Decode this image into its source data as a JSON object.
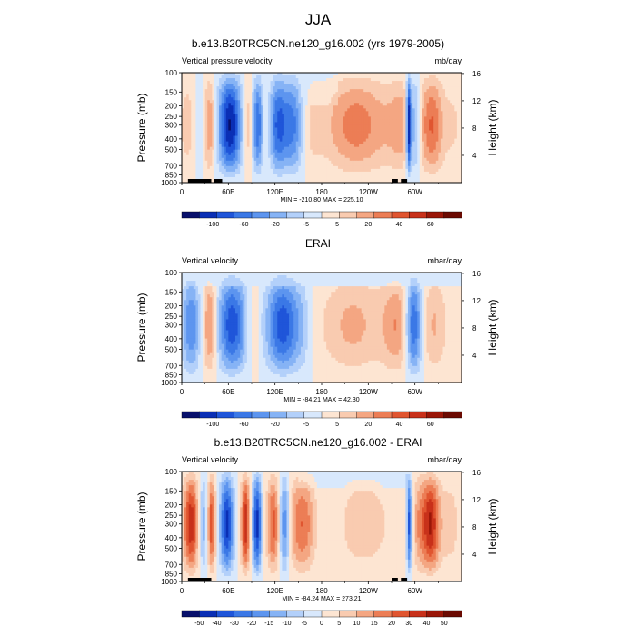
{
  "title": "JJA",
  "chart_data": [
    {
      "type": "heatmap",
      "title": "b.e13.B20TRC5CN.ne120_g16.002 (yrs 1979-2005)",
      "left_label": "Vertical pressure velocity",
      "right_label": "mb/day",
      "ylabel": "Pressure (mb)",
      "ylabel_right": "Height (km)",
      "x_ticks": [
        "0",
        "60E",
        "120E",
        "180",
        "120W",
        "60W"
      ],
      "x_tick_lon": [
        0,
        60,
        120,
        180,
        240,
        300
      ],
      "y_ticks": [
        "100",
        "150",
        "200",
        "250",
        "300",
        "400",
        "500",
        "700",
        "850",
        "1000"
      ],
      "y_tick_values": [
        100,
        150,
        200,
        250,
        300,
        400,
        500,
        700,
        850,
        1000
      ],
      "height_ticks": [
        "4",
        "8",
        "12",
        "16"
      ],
      "height_tick_values": [
        4,
        8,
        12,
        16
      ],
      "stats": "MIN = -210.80  MAX = 225.10",
      "colorbar_labels": [
        "-100",
        "-60",
        "-20",
        "-5",
        "5",
        "20",
        "40",
        "60"
      ]
    },
    {
      "type": "heatmap",
      "title": "ERAI",
      "left_label": "Vertical velocity",
      "right_label": "mbar/day",
      "ylabel": "Pressure (mb)",
      "ylabel_right": "Height (km)",
      "x_ticks": [
        "0",
        "60E",
        "120E",
        "180",
        "120W",
        "60W"
      ],
      "x_tick_lon": [
        0,
        60,
        120,
        180,
        240,
        300
      ],
      "y_ticks": [
        "100",
        "150",
        "200",
        "250",
        "300",
        "400",
        "500",
        "700",
        "850",
        "1000"
      ],
      "y_tick_values": [
        100,
        150,
        200,
        250,
        300,
        400,
        500,
        700,
        850,
        1000
      ],
      "height_ticks": [
        "4",
        "8",
        "12",
        "16"
      ],
      "height_tick_values": [
        4,
        8,
        12,
        16
      ],
      "stats": "MIN = -84.21  MAX = 42.30",
      "colorbar_labels": [
        "-100",
        "-60",
        "-20",
        "-5",
        "5",
        "20",
        "40",
        "60"
      ]
    },
    {
      "type": "heatmap",
      "title": "b.e13.B20TRC5CN.ne120_g16.002 - ERAI",
      "left_label": "Vertical velocity",
      "right_label": "mbar/day",
      "ylabel": "Pressure (mb)",
      "ylabel_right": "Height (km)",
      "x_ticks": [
        "0",
        "60E",
        "120E",
        "180",
        "120W",
        "60W"
      ],
      "x_tick_lon": [
        0,
        60,
        120,
        180,
        240,
        300
      ],
      "y_ticks": [
        "100",
        "150",
        "200",
        "250",
        "300",
        "400",
        "500",
        "700",
        "850",
        "1000"
      ],
      "y_tick_values": [
        100,
        150,
        200,
        250,
        300,
        400,
        500,
        700,
        850,
        1000
      ],
      "height_ticks": [
        "4",
        "8",
        "12",
        "16"
      ],
      "height_tick_values": [
        4,
        8,
        12,
        16
      ],
      "stats": "MIN = -84.24  MAX = 273.21",
      "colorbar_labels": [
        "-50",
        "-40",
        "-30",
        "-20",
        "-15",
        "-10",
        "-5",
        "0",
        "5",
        "10",
        "15",
        "20",
        "30",
        "40",
        "50"
      ]
    }
  ],
  "colors": {
    "diverging": [
      "#08106b",
      "#0a2fb5",
      "#1f55d9",
      "#3b78e6",
      "#5d95ef",
      "#86b3f5",
      "#b3d0fa",
      "#d8e8fc",
      "#fde5d2",
      "#f9cbb0",
      "#f4a682",
      "#ec7d55",
      "#e05530",
      "#c8311a",
      "#9a1608",
      "#6b0a02"
    ],
    "terrain": "#000000"
  }
}
